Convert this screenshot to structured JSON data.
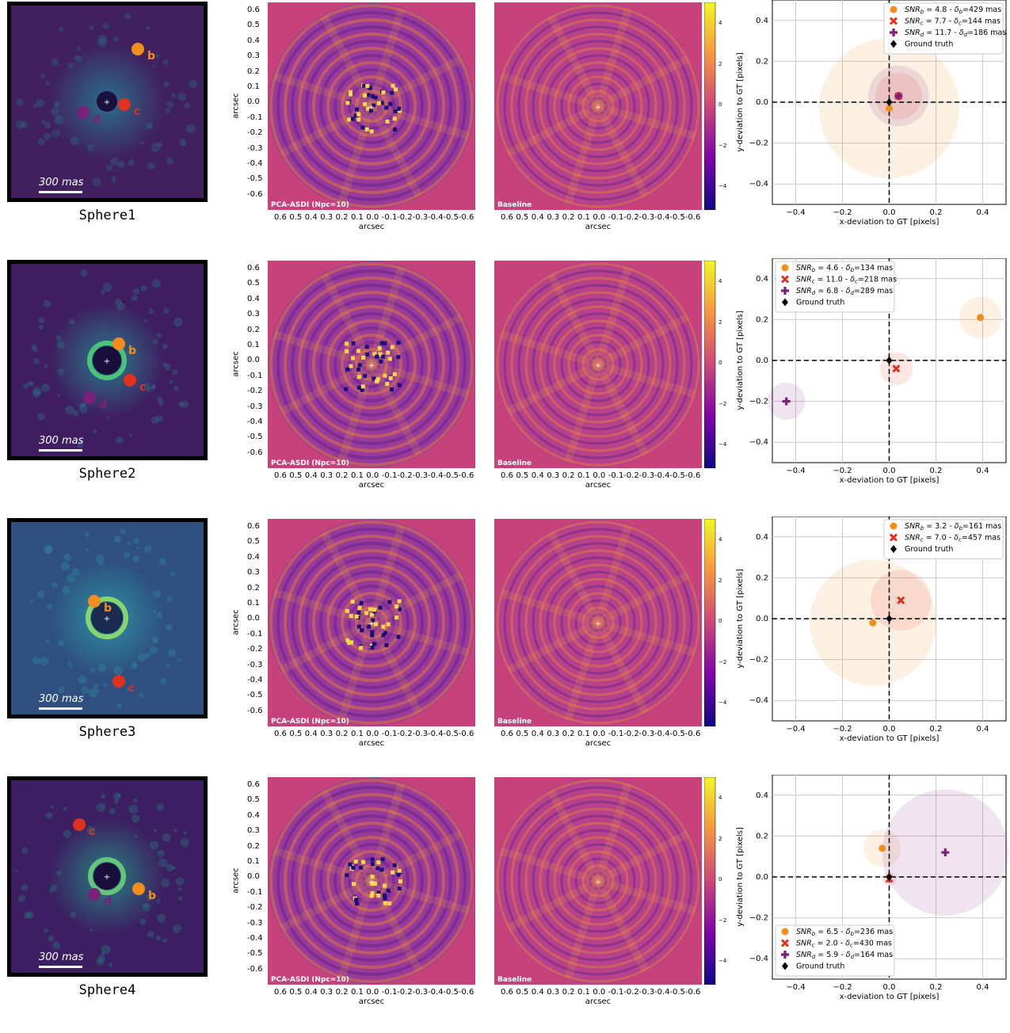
{
  "figure": {
    "rows": [
      {
        "dataset": "Sphere1",
        "scalebar": "300 mas",
        "planets": [
          {
            "id": "b",
            "color": "#f28e1c"
          },
          {
            "id": "c",
            "color": "#e0301e"
          },
          {
            "id": "d",
            "color": "#7a1f7a"
          }
        ]
      },
      {
        "dataset": "Sphere2",
        "scalebar": "300 mas",
        "planets": [
          {
            "id": "b",
            "color": "#f28e1c"
          },
          {
            "id": "c",
            "color": "#e0301e"
          },
          {
            "id": "d",
            "color": "#7a1f7a"
          }
        ]
      },
      {
        "dataset": "Sphere3",
        "scalebar": "300 mas",
        "planets": [
          {
            "id": "b",
            "color": "#f28e1c"
          },
          {
            "id": "c",
            "color": "#e0301e"
          }
        ]
      },
      {
        "dataset": "Sphere4",
        "scalebar": "300 mas",
        "planets": [
          {
            "id": "c",
            "color": "#e0301e"
          },
          {
            "id": "b",
            "color": "#f28e1c"
          },
          {
            "id": "d",
            "color": "#7a1f7a"
          }
        ]
      }
    ],
    "map_panels": {
      "left_label": "PCA-ASDI (Npc=10)",
      "right_label": "Baseline",
      "xlabel": "arcsec",
      "ylabel": "arcsec",
      "xticks": [
        "0.6",
        "0.5",
        "0.4",
        "0.3",
        "0.2",
        "0.1",
        "0.0",
        "-0.1",
        "-0.2",
        "-0.3",
        "-0.4",
        "-0.5",
        "-0.6"
      ],
      "yticks": [
        "0.6",
        "0.5",
        "0.4",
        "0.3",
        "0.2",
        "0.1",
        "0.0",
        "-0.1",
        "-0.2",
        "-0.3",
        "-0.4",
        "-0.5",
        "-0.6"
      ],
      "colorbar_ticks": [
        "4",
        "2",
        "0",
        "−2",
        "−4"
      ]
    }
  },
  "chart_data": [
    {
      "type": "scatter",
      "row": 1,
      "xlabel": "x-deviation to GT [pixels]",
      "ylabel": "y-deviation to GT [pixels]",
      "xlim": [
        -0.5,
        0.5
      ],
      "ylim": [
        -0.5,
        0.5
      ],
      "xticks": [
        "−0.4",
        "−0.2",
        "0.0",
        "0.2",
        "0.4"
      ],
      "yticks": [
        "0.4",
        "0.2",
        "0.0",
        "−0.2",
        "−0.4"
      ],
      "legend_position": "top-right",
      "grid": true,
      "series": [
        {
          "label": "SNR_b = 4.8 - δ_b=429 mas",
          "snr_sub": "b",
          "snr": "4.8",
          "delta": "429",
          "marker": "circle",
          "color": "#f28e1c",
          "x": 0.0,
          "y": -0.03,
          "radius": 0.3
        },
        {
          "label": "SNR_c = 7.7 - δ_c=144 mas",
          "snr_sub": "c",
          "snr": "7.7",
          "delta": "144",
          "marker": "x",
          "color": "#e0301e",
          "x": 0.04,
          "y": 0.03,
          "radius": 0.1
        },
        {
          "label": "SNR_d = 11.7 - δ_d=186 mas",
          "snr_sub": "d",
          "snr": "11.7",
          "delta": "186",
          "marker": "plus",
          "color": "#7a1f7a",
          "x": 0.04,
          "y": 0.03,
          "radius": 0.13
        },
        {
          "label": "Ground truth",
          "marker": "diamond",
          "color": "#000000",
          "x": 0,
          "y": 0
        }
      ]
    },
    {
      "type": "scatter",
      "row": 2,
      "xlabel": "x-deviation to GT [pixels]",
      "ylabel": "y-deviation to GT [pixels]",
      "xlim": [
        -0.5,
        0.5
      ],
      "ylim": [
        -0.5,
        0.5
      ],
      "xticks": [
        "−0.4",
        "−0.2",
        "0.0",
        "0.2",
        "0.4"
      ],
      "yticks": [
        "0.4",
        "0.2",
        "0.0",
        "−0.2",
        "−0.4"
      ],
      "legend_position": "top-left",
      "grid": true,
      "series": [
        {
          "label": "SNR_b = 4.6 - δ_b=134 mas",
          "snr_sub": "b",
          "snr": "4.6",
          "delta": "134",
          "marker": "circle",
          "color": "#f28e1c",
          "x": 0.39,
          "y": 0.21,
          "radius": 0.09
        },
        {
          "label": "SNR_c = 11.0 - δ_c=218 mas",
          "snr_sub": "c",
          "snr": "11.0",
          "delta": "218",
          "marker": "x",
          "color": "#e0301e",
          "x": 0.03,
          "y": -0.04,
          "radius": 0.07
        },
        {
          "label": "SNR_d = 6.8 - δ_d=289 mas",
          "snr_sub": "d",
          "snr": "6.8",
          "delta": "289",
          "marker": "plus",
          "color": "#7a1f7a",
          "x": -0.44,
          "y": -0.2,
          "radius": 0.08
        },
        {
          "label": "Ground truth",
          "marker": "diamond",
          "color": "#000000",
          "x": 0,
          "y": 0
        }
      ]
    },
    {
      "type": "scatter",
      "row": 3,
      "xlabel": "x-deviation to GT [pixels]",
      "ylabel": "y-deviation to GT [pixels]",
      "xlim": [
        -0.5,
        0.5
      ],
      "ylim": [
        -0.5,
        0.5
      ],
      "xticks": [
        "−0.4",
        "−0.2",
        "0.0",
        "0.2",
        "0.4"
      ],
      "yticks": [
        "0.4",
        "0.2",
        "0.0",
        "−0.2",
        "−0.4"
      ],
      "legend_position": "top-right",
      "grid": true,
      "series": [
        {
          "label": "SNR_b = 3.2 - δ_b=161 mas",
          "snr_sub": "b",
          "snr": "3.2",
          "delta": "161",
          "marker": "circle",
          "color": "#f28e1c",
          "x": -0.07,
          "y": -0.02,
          "radius": 0.27
        },
        {
          "label": "SNR_c = 7.0 - δ_c=457 mas",
          "snr_sub": "c",
          "snr": "7.0",
          "delta": "457",
          "marker": "x",
          "color": "#e0301e",
          "x": 0.05,
          "y": 0.09,
          "radius": 0.13
        },
        {
          "label": "Ground truth",
          "marker": "diamond",
          "color": "#000000",
          "x": 0,
          "y": 0
        }
      ]
    },
    {
      "type": "scatter",
      "row": 4,
      "xlabel": "x-deviation to GT [pixels]",
      "ylabel": "y-deviation to GT [pixels]",
      "xlim": [
        -0.5,
        0.5
      ],
      "ylim": [
        -0.5,
        0.5
      ],
      "xticks": [
        "−0.4",
        "−0.2",
        "0.0",
        "0.2",
        "0.4"
      ],
      "yticks": [
        "0.4",
        "0.2",
        "0.0",
        "−0.2",
        "−0.4"
      ],
      "legend_position": "bottom-left",
      "grid": true,
      "series": [
        {
          "label": "SNR_b = 6.5 - δ_b=236 mas",
          "snr_sub": "b",
          "snr": "6.5",
          "delta": "236",
          "marker": "circle",
          "color": "#f28e1c",
          "x": -0.03,
          "y": 0.14,
          "radius": 0.08
        },
        {
          "label": "SNR_c = 2.0 - δ_c=430 mas",
          "snr_sub": "c",
          "snr": "2.0",
          "delta": "430",
          "marker": "x",
          "color": "#e0301e",
          "x": 0.0,
          "y": -0.01,
          "radius": 0.03
        },
        {
          "label": "SNR_d = 5.9 - δ_d=164 mas",
          "snr_sub": "d",
          "snr": "5.9",
          "delta": "164",
          "marker": "plus",
          "color": "#7a1f7a",
          "x": 0.24,
          "y": 0.12,
          "radius": 0.27
        },
        {
          "label": "Ground truth",
          "marker": "diamond",
          "color": "#000000",
          "x": 0,
          "y": 0
        }
      ]
    }
  ]
}
